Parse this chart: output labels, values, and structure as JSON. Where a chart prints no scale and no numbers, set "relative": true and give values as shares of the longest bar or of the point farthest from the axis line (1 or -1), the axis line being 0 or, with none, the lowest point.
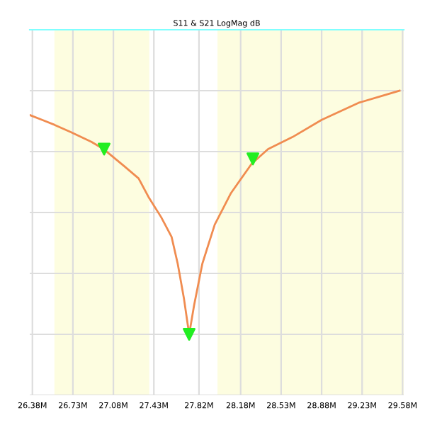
{
  "chart_data": {
    "type": "line",
    "title": "S11 & S21 LogMag dB",
    "relative": true,
    "x": [
      26.357,
      26.464,
      26.57,
      26.712,
      26.89,
      26.996,
      27.174,
      27.298,
      27.388,
      27.494,
      27.583,
      27.636,
      27.689,
      27.735,
      27.778,
      27.849,
      27.956,
      28.097,
      28.275,
      28.417,
      28.63,
      28.88,
      29.199,
      29.412,
      29.554
    ],
    "series": [
      {
        "color": "#f08c50",
        "marker": "none",
        "values": [
          0.9,
          0.88,
          0.86,
          0.83,
          0.79,
          0.76,
          0.69,
          0.64,
          0.56,
          0.48,
          0.4,
          0.29,
          0.15,
          0,
          0.12,
          0.29,
          0.45,
          0.58,
          0.7,
          0.76,
          0.81,
          0.88,
          0.95,
          0.98,
          1.0
        ]
      },
      {
        "type": "scatter",
        "color": "#22ee22",
        "marker": "triangle",
        "x": [
          27.0,
          27.735,
          28.286
        ],
        "values": [
          0.76,
          0,
          0.72
        ]
      }
    ],
    "bands": [
      {
        "axis": "x",
        "from": 26.57,
        "to": 27.39,
        "color": "#fdfde0"
      },
      {
        "axis": "x",
        "from": 27.98,
        "to": 29.59,
        "color": "#fdfde0"
      }
    ],
    "xlim": [
      26.357,
      29.59
    ],
    "xticks": [
      {
        "value": 26.38,
        "label": "26.38M"
      },
      {
        "value": 26.73,
        "label": "26.73M"
      },
      {
        "value": 27.08,
        "label": "27.08M"
      },
      {
        "value": 27.43,
        "label": "27.43M"
      },
      {
        "value": 27.82,
        "label": "27.82M"
      },
      {
        "value": 28.18,
        "label": "28.18M"
      },
      {
        "value": 28.53,
        "label": "28.53M"
      },
      {
        "value": 28.88,
        "label": "28.88M"
      },
      {
        "value": 29.23,
        "label": "29.23M"
      },
      {
        "value": 29.58,
        "label": "29.58M"
      }
    ],
    "grid": true,
    "tick_labels": "x",
    "legend": false
  }
}
